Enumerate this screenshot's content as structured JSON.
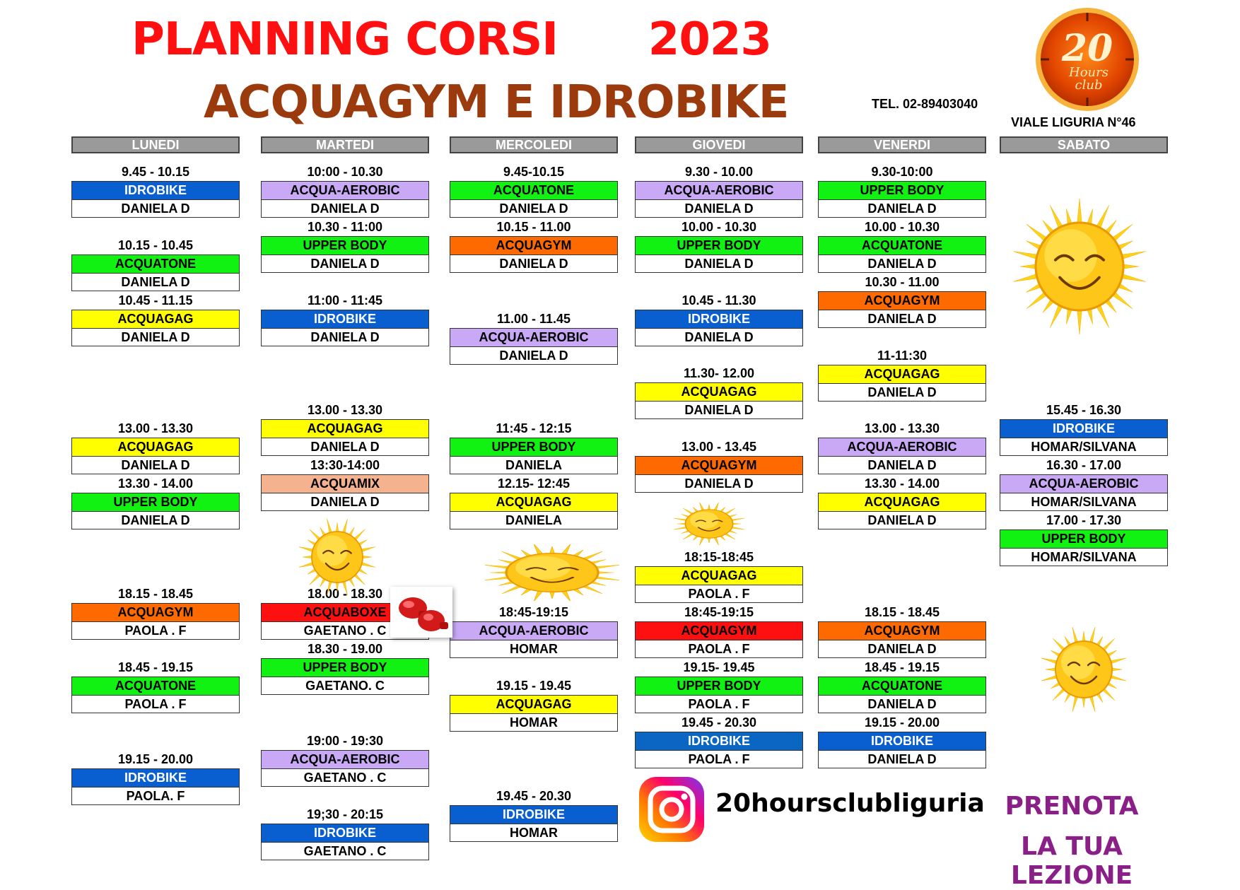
{
  "header": {
    "title_line1": "PLANNING CORSI      2023",
    "title_line2": "ACQUAGYM E IDROBIKE",
    "phone": "TEL. 02-89403040",
    "address": "VIALE LIGURIA N°46",
    "logo_number": "20",
    "logo_text1": "Hours",
    "logo_text2": "club"
  },
  "colors": {
    "IDROBIKE": "#0a5fd0",
    "ACQUA-AEROBIC": "#c9a8f5",
    "ACQUATONE": "#12f212",
    "UPPER BODY": "#12f212",
    "ACQUAGYM": "#ff6a00",
    "ACQUAGAG": "#ffff00",
    "ACQUAMIX": "#f4b38e",
    "ACQUABOXE": "#ff1010",
    "ACQUAGYM_RED": "#ff1010",
    "IDROBIKE_DARK": "#0b66c3"
  },
  "days": [
    {
      "label": "LUNEDI"
    },
    {
      "label": "MARTEDI"
    },
    {
      "label": "MERCOLEDI"
    },
    {
      "label": "GIOVEDI"
    },
    {
      "label": "VENERDI"
    },
    {
      "label": "SABATO"
    }
  ],
  "schedule": {
    "lunedi": [
      {
        "time": "9.45 - 10.15",
        "cls": "IDROBIKE",
        "teacher": "DANIELA  D"
      },
      {
        "time": "10.15 - 10.45",
        "cls": "ACQUATONE",
        "teacher": "DANIELA  D"
      },
      {
        "time": "10.45 - 11.15",
        "cls": "ACQUAGAG",
        "teacher": "DANIELA  D"
      },
      {
        "time": "13.00 - 13.30",
        "cls": "ACQUAGAG",
        "teacher": "DANIELA  D"
      },
      {
        "time": "13.30 - 14.00",
        "cls": "UPPER BODY",
        "teacher": "DANIELA  D"
      },
      {
        "time": "18.15 - 18.45",
        "cls": "ACQUAGYM",
        "teacher": "PAOLA . F"
      },
      {
        "time": "18.45 - 19.15",
        "cls": "ACQUATONE",
        "teacher": "PAOLA . F"
      },
      {
        "time": "19.15 - 20.00",
        "cls": "IDROBIKE",
        "teacher": "PAOLA. F"
      }
    ],
    "martedi": [
      {
        "time": "10:00 - 10.30",
        "cls": "ACQUA-AEROBIC",
        "teacher": "DANIELA D"
      },
      {
        "time": "10.30 - 11:00",
        "cls": "UPPER BODY",
        "teacher": "DANIELA D"
      },
      {
        "time": "11:00 - 11:45",
        "cls": "IDROBIKE",
        "teacher": "DANIELA D"
      },
      {
        "time": "13.00 - 13.30",
        "cls": "ACQUAGAG",
        "teacher": "DANIELA D"
      },
      {
        "time": "13:30-14:00",
        "cls": "ACQUAMIX",
        "teacher": "DANIELA D"
      },
      {
        "time": "18.00 - 18.30",
        "cls": "ACQUABOXE",
        "teacher": "GAETANO . C"
      },
      {
        "time": "18.30 - 19.00",
        "cls": "UPPER BODY",
        "teacher": "GAETANO. C"
      },
      {
        "time": "19:00 - 19:30",
        "cls": "ACQUA-AEROBIC",
        "teacher": "GAETANO . C"
      },
      {
        "time": "19;30 - 20:15",
        "cls": "IDROBIKE",
        "teacher": "GAETANO . C"
      }
    ],
    "mercoledi": [
      {
        "time": "9.45-10.15",
        "cls": "ACQUATONE",
        "teacher": "DANIELA D"
      },
      {
        "time": "10.15 - 11.00",
        "cls": "ACQUAGYM",
        "teacher": "DANIELA D"
      },
      {
        "time": "11.00 - 11.45",
        "cls": "ACQUA-AEROBIC",
        "teacher": "DANIELA D"
      },
      {
        "time": "11:45 - 12:15",
        "cls": "UPPER BODY",
        "teacher": "DANIELA"
      },
      {
        "time": "12.15- 12:45",
        "cls": "ACQUAGAG",
        "teacher": "DANIELA"
      },
      {
        "time": "18:45-19:15",
        "cls": "ACQUA-AEROBIC",
        "teacher": "HOMAR"
      },
      {
        "time": "19.15 - 19.45",
        "cls": "ACQUAGAG",
        "teacher": "HOMAR"
      },
      {
        "time": "19.45 - 20.30",
        "cls": "IDROBIKE",
        "teacher": "HOMAR"
      }
    ],
    "giovedi": [
      {
        "time": "9.30 - 10.00",
        "cls": "ACQUA-AEROBIC",
        "teacher": "DANIELA  D"
      },
      {
        "time": "10.00 - 10.30",
        "cls": "UPPER BODY",
        "teacher": "DANIELA  D"
      },
      {
        "time": "10.45 - 11.30",
        "cls": "IDROBIKE",
        "teacher": "DANIELA  D"
      },
      {
        "time": "11.30- 12.00",
        "cls": "ACQUAGAG",
        "teacher": "DANIELA  D"
      },
      {
        "time": "13.00 - 13.45",
        "cls": "ACQUAGYM",
        "teacher": "DANIELA  D"
      },
      {
        "time": "18:15-18:45",
        "cls": "ACQUAGAG",
        "teacher": "PAOLA . F"
      },
      {
        "time": "18:45-19:15",
        "cls": "ACQUAGYM",
        "teacher": "PAOLA . F"
      },
      {
        "time": "19.15- 19.45",
        "cls": "UPPER BODY",
        "teacher": "PAOLA . F"
      },
      {
        "time": "19.45 - 20.30",
        "cls": "IDROBIKE",
        "teacher": "PAOLA . F"
      }
    ],
    "venerdi": [
      {
        "time": "9.30-10:00",
        "cls": "UPPER BODY",
        "teacher": "DANIELA D"
      },
      {
        "time": "10.00 - 10.30",
        "cls": "ACQUATONE",
        "teacher": "DANIELA  D"
      },
      {
        "time": "10.30 - 11.00",
        "cls": "ACQUAGYM",
        "teacher": "DANIELA  D"
      },
      {
        "time": "11-11:30",
        "cls": "ACQUAGAG",
        "teacher": "DANIELA  D"
      },
      {
        "time": "13.00 - 13.30",
        "cls": "ACQUA-AEROBIC",
        "teacher": "DANIELA  D"
      },
      {
        "time": "13.30 - 14.00",
        "cls": "ACQUAGAG",
        "teacher": "DANIELA  D"
      },
      {
        "time": "18.15 - 18.45",
        "cls": "ACQUAGYM",
        "teacher": "DANIELA D"
      },
      {
        "time": "18.45 - 19.15",
        "cls": "ACQUATONE",
        "teacher": "DANIELA D"
      },
      {
        "time": "19.15 - 20.00",
        "cls": "IDROBIKE",
        "teacher": "DANIELA D"
      }
    ],
    "sabato": [
      {
        "time": "15.45 - 16.30",
        "cls": "IDROBIKE",
        "teacher": "HOMAR/SILVANA"
      },
      {
        "time": "16.30 - 17.00",
        "cls": "ACQUA-AEROBIC",
        "teacher": "HOMAR/SILVANA"
      },
      {
        "time": "17.00 - 17.30",
        "cls": "UPPER BODY",
        "teacher": "HOMAR/SILVANA"
      }
    ]
  },
  "social": {
    "instagram_handle": "20hoursclubliguria",
    "cta_line1": "PRENOTA",
    "cta_line2": "LA TUA LEZIONE"
  }
}
